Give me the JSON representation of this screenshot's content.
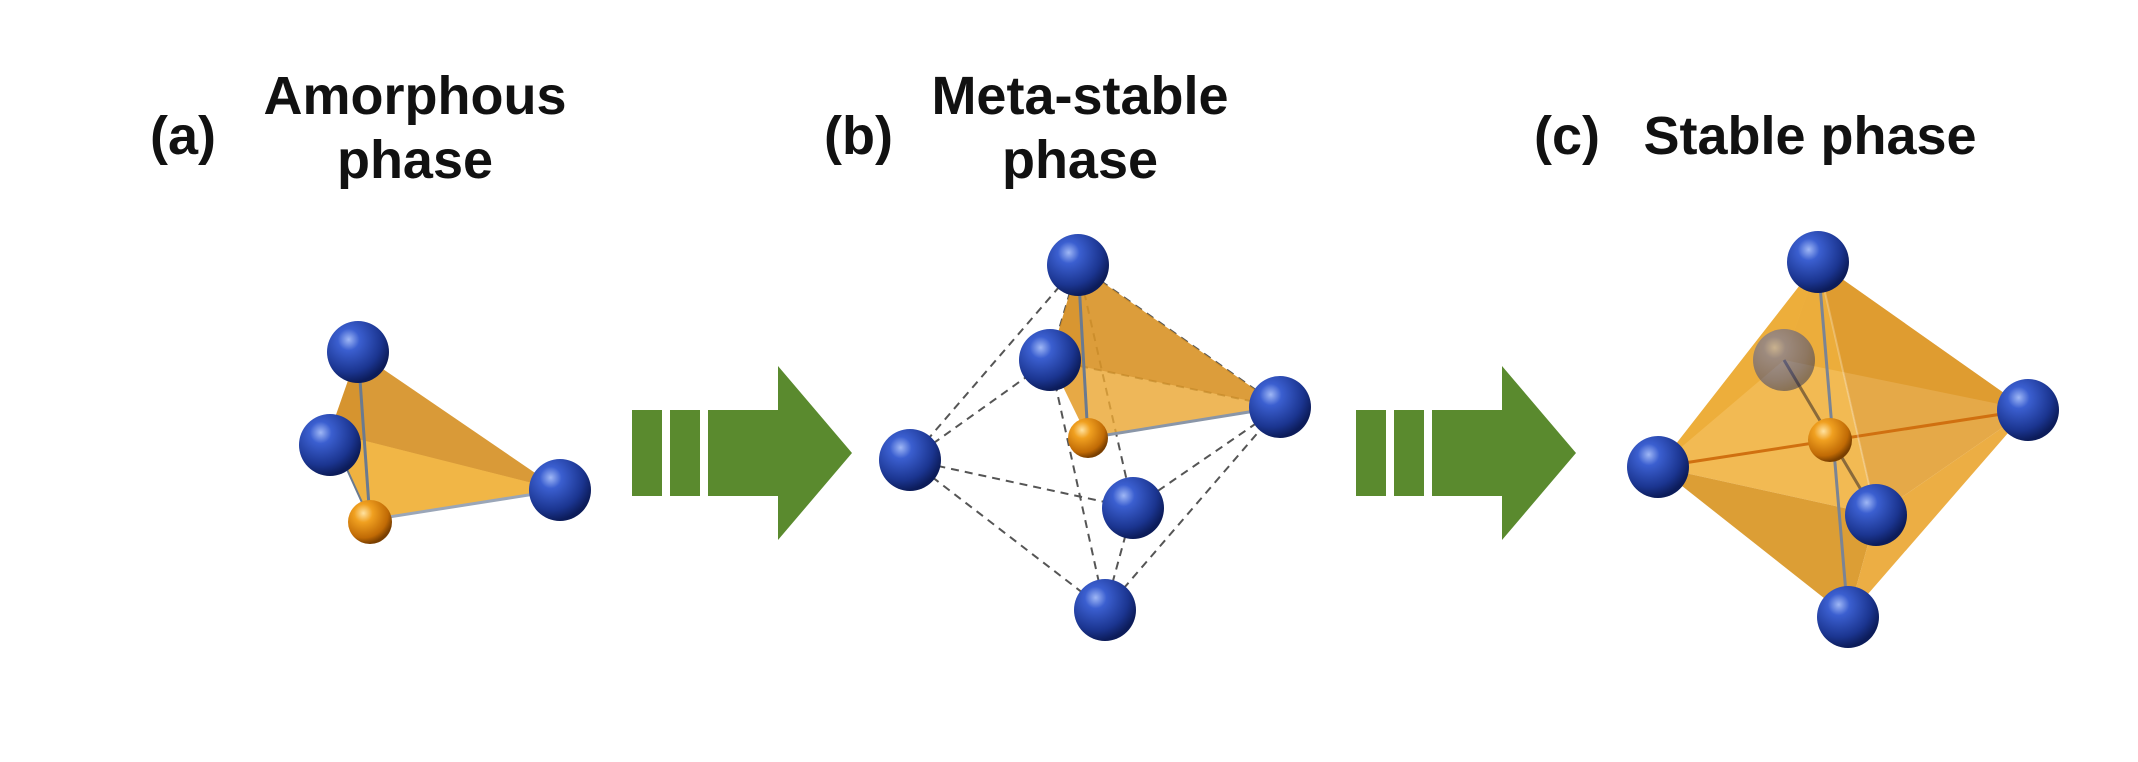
{
  "panels": [
    {
      "letter": "(a)",
      "title_lines": [
        "Amorphous",
        "phase"
      ],
      "coordination": "tetrahedral"
    },
    {
      "letter": "(b)",
      "title_lines": [
        "Meta-stable",
        "phase"
      ],
      "coordination": "tetrahedral-in-octahedral-cage"
    },
    {
      "letter": "(c)",
      "title_lines": [
        "Stable phase"
      ],
      "coordination": "octahedral"
    }
  ],
  "arrows": [
    {
      "from": "(a)",
      "to": "(b)",
      "icon": "transition-arrow-icon"
    },
    {
      "from": "(b)",
      "to": "(c)",
      "icon": "transition-arrow-icon"
    }
  ],
  "colors": {
    "anion_atom": "#1f3f9f",
    "cation_atom": "#e08a10",
    "polyhedron": "#f0a630",
    "arrow": "#5a8a2e",
    "text": "#111111"
  }
}
